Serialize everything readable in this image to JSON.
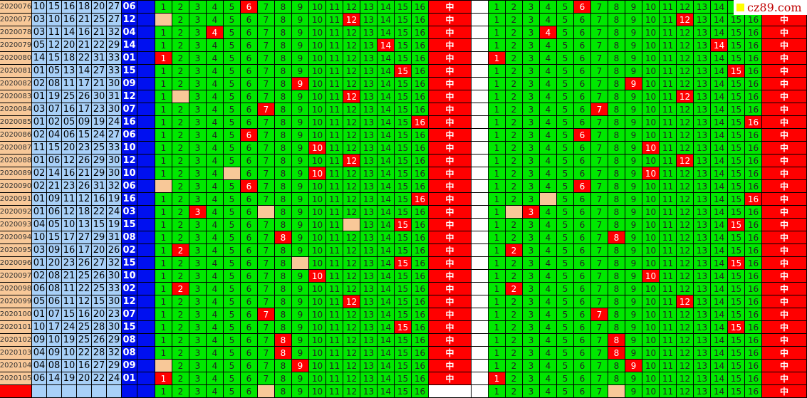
{
  "logo": {
    "text": "cz89.com"
  },
  "grid_numbers": [
    "1",
    "2",
    "3",
    "4",
    "5",
    "6",
    "7",
    "8",
    "9",
    "10",
    "11",
    "12",
    "13",
    "14",
    "15",
    "16"
  ],
  "hit_label": "中",
  "colors": {
    "hit": "#ff0000",
    "cell": "#00e800",
    "skip": "#f8c898",
    "numbers_bg": "#a8d0f8",
    "special_bg": "#0010f0"
  },
  "rows": [
    {
      "issue": "2020076",
      "nums": [
        "10",
        "15",
        "16",
        "18",
        "20",
        "27"
      ],
      "special": "06",
      "left_skip": [],
      "right_skip": []
    },
    {
      "issue": "2020077",
      "nums": [
        "03",
        "10",
        "16",
        "21",
        "25",
        "27"
      ],
      "special": "12",
      "left_skip": [
        1
      ],
      "right_skip": []
    },
    {
      "issue": "2020078",
      "nums": [
        "03",
        "11",
        "14",
        "16",
        "21",
        "32"
      ],
      "special": "04",
      "left_skip": [],
      "right_skip": []
    },
    {
      "issue": "2020079",
      "nums": [
        "05",
        "12",
        "20",
        "21",
        "22",
        "29"
      ],
      "special": "14",
      "left_skip": [],
      "right_skip": []
    },
    {
      "issue": "2020080",
      "nums": [
        "14",
        "15",
        "18",
        "22",
        "31",
        "33"
      ],
      "special": "01",
      "left_skip": [],
      "right_skip": []
    },
    {
      "issue": "2020081",
      "nums": [
        "01",
        "05",
        "13",
        "14",
        "27",
        "33"
      ],
      "special": "15",
      "left_skip": [],
      "right_skip": []
    },
    {
      "issue": "2020082",
      "nums": [
        "02",
        "08",
        "11",
        "17",
        "21",
        "30"
      ],
      "special": "09",
      "left_skip": [],
      "right_skip": []
    },
    {
      "issue": "2020083",
      "nums": [
        "01",
        "19",
        "25",
        "26",
        "30",
        "31"
      ],
      "special": "12",
      "left_skip": [
        2
      ],
      "right_skip": []
    },
    {
      "issue": "2020084",
      "nums": [
        "03",
        "07",
        "16",
        "17",
        "23",
        "30"
      ],
      "special": "07",
      "left_skip": [],
      "right_skip": []
    },
    {
      "issue": "2020085",
      "nums": [
        "01",
        "02",
        "05",
        "09",
        "19",
        "24"
      ],
      "special": "16",
      "left_skip": [],
      "right_skip": []
    },
    {
      "issue": "2020086",
      "nums": [
        "02",
        "04",
        "06",
        "15",
        "24",
        "27"
      ],
      "special": "06",
      "left_skip": [],
      "right_skip": []
    },
    {
      "issue": "2020087",
      "nums": [
        "11",
        "15",
        "20",
        "23",
        "25",
        "33"
      ],
      "special": "10",
      "left_skip": [],
      "right_skip": []
    },
    {
      "issue": "2020088",
      "nums": [
        "01",
        "06",
        "12",
        "26",
        "29",
        "30"
      ],
      "special": "12",
      "left_skip": [],
      "right_skip": []
    },
    {
      "issue": "2020089",
      "nums": [
        "02",
        "14",
        "16",
        "21",
        "29",
        "30"
      ],
      "special": "10",
      "left_skip": [
        5
      ],
      "right_skip": []
    },
    {
      "issue": "2020090",
      "nums": [
        "02",
        "21",
        "23",
        "26",
        "31",
        "32"
      ],
      "special": "06",
      "left_skip": [
        1
      ],
      "right_skip": []
    },
    {
      "issue": "2020091",
      "nums": [
        "01",
        "09",
        "11",
        "12",
        "16",
        "19"
      ],
      "special": "16",
      "left_skip": [],
      "right_skip": [
        4
      ]
    },
    {
      "issue": "2020092",
      "nums": [
        "01",
        "06",
        "12",
        "18",
        "22",
        "24"
      ],
      "special": "03",
      "left_skip": [
        7
      ],
      "right_skip": [
        2
      ]
    },
    {
      "issue": "2020093",
      "nums": [
        "04",
        "05",
        "10",
        "13",
        "15",
        "19"
      ],
      "special": "15",
      "left_skip": [
        12
      ],
      "right_skip": []
    },
    {
      "issue": "2020094",
      "nums": [
        "10",
        "15",
        "17",
        "27",
        "29",
        "31"
      ],
      "special": "08",
      "left_skip": [],
      "right_skip": []
    },
    {
      "issue": "2020095",
      "nums": [
        "03",
        "09",
        "16",
        "17",
        "20",
        "26"
      ],
      "special": "02",
      "left_skip": [],
      "right_skip": []
    },
    {
      "issue": "2020096",
      "nums": [
        "01",
        "20",
        "23",
        "26",
        "27",
        "32"
      ],
      "special": "15",
      "left_skip": [
        9
      ],
      "right_skip": []
    },
    {
      "issue": "2020097",
      "nums": [
        "02",
        "08",
        "21",
        "25",
        "26",
        "30"
      ],
      "special": "10",
      "left_skip": [],
      "right_skip": []
    },
    {
      "issue": "2020098",
      "nums": [
        "06",
        "08",
        "11",
        "22",
        "25",
        "33"
      ],
      "special": "02",
      "left_skip": [],
      "right_skip": []
    },
    {
      "issue": "2020099",
      "nums": [
        "05",
        "06",
        "11",
        "12",
        "15",
        "30"
      ],
      "special": "12",
      "left_skip": [],
      "right_skip": []
    },
    {
      "issue": "2020100",
      "nums": [
        "01",
        "07",
        "15",
        "16",
        "20",
        "23"
      ],
      "special": "07",
      "left_skip": [],
      "right_skip": []
    },
    {
      "issue": "2020101",
      "nums": [
        "10",
        "17",
        "24",
        "25",
        "28",
        "30"
      ],
      "special": "15",
      "left_skip": [],
      "right_skip": []
    },
    {
      "issue": "2020102",
      "nums": [
        "09",
        "10",
        "19",
        "25",
        "26",
        "29"
      ],
      "special": "08",
      "left_skip": [],
      "right_skip": []
    },
    {
      "issue": "2020103",
      "nums": [
        "04",
        "09",
        "10",
        "22",
        "28",
        "32"
      ],
      "special": "08",
      "left_skip": [],
      "right_skip": []
    },
    {
      "issue": "2020104",
      "nums": [
        "04",
        "08",
        "10",
        "16",
        "27",
        "29"
      ],
      "special": "09",
      "left_skip": [
        1
      ],
      "right_skip": []
    },
    {
      "issue": "2020105",
      "nums": [
        "06",
        "14",
        "19",
        "20",
        "22",
        "24"
      ],
      "special": "01",
      "left_skip": [],
      "right_skip": []
    },
    {
      "issue": "",
      "nums": [
        "",
        "",
        "",
        "",
        "",
        ""
      ],
      "special": "",
      "left_skip": [
        7
      ],
      "right_skip": [
        8
      ],
      "pending": true
    }
  ]
}
